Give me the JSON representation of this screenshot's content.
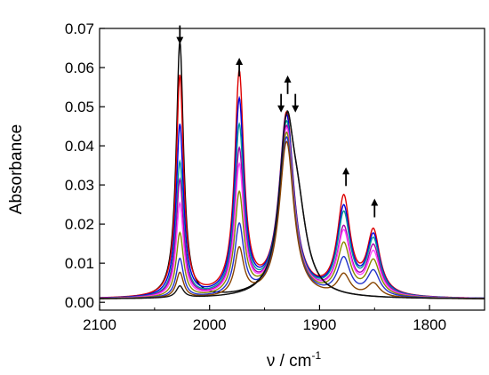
{
  "chart_data": {
    "type": "line",
    "title": "",
    "xlabel": "ν / cm",
    "xlabel_superscript": "-1",
    "ylabel": "Absorbance",
    "xlim": [
      2100,
      1750
    ],
    "ylim": [
      -0.002,
      0.07
    ],
    "x_reversed": true,
    "x_ticks": [
      2100,
      2000,
      1900,
      1800
    ],
    "y_ticks": [
      0.0,
      0.01,
      0.02,
      0.03,
      0.04,
      0.05,
      0.06,
      0.07
    ],
    "y_tick_labels": [
      "0.00",
      "0.01",
      "0.02",
      "0.03",
      "0.04",
      "0.05",
      "0.06",
      "0.07"
    ],
    "grid": false,
    "legend": "none",
    "arrows": [
      {
        "x": 2027,
        "y": 0.0685,
        "direction": "down"
      },
      {
        "x": 1973,
        "y": 0.06,
        "direction": "up"
      },
      {
        "x": 1935,
        "y": 0.051,
        "direction": "down"
      },
      {
        "x": 1929,
        "y": 0.0555,
        "direction": "up"
      },
      {
        "x": 1922,
        "y": 0.051,
        "direction": "down"
      },
      {
        "x": 1876,
        "y": 0.032,
        "direction": "up"
      },
      {
        "x": 1850,
        "y": 0.024,
        "direction": "up"
      }
    ],
    "series": [
      {
        "color": "#000000",
        "peaks": [
          0.0655,
          0.0,
          0.039,
          0.0,
          0.0
        ],
        "shoulder": 0.0385
      },
      {
        "color": "#dd0000",
        "peaks": [
          0.0565,
          0.0565,
          0.0465,
          0.0245,
          0.016
        ],
        "shoulder": 0.0
      },
      {
        "color": "#0000dd",
        "peaks": [
          0.044,
          0.0495,
          0.046,
          0.022,
          0.015
        ],
        "shoulder": 0.0
      },
      {
        "color": "#009999",
        "peaks": [
          0.0345,
          0.043,
          0.0445,
          0.0205,
          0.014
        ],
        "shoulder": 0.0
      },
      {
        "color": "#aa00aa",
        "peaks": [
          0.03,
          0.037,
          0.0435,
          0.017,
          0.0125
        ],
        "shoulder": 0.0
      },
      {
        "color": "#ff44ff",
        "peaks": [
          0.024,
          0.033,
          0.043,
          0.016,
          0.011
        ],
        "shoulder": 0.0
      },
      {
        "color": "#888800",
        "peaks": [
          0.0165,
          0.026,
          0.042,
          0.013,
          0.009
        ],
        "shoulder": 0.0
      },
      {
        "color": "#2233cc",
        "peaks": [
          0.01,
          0.018,
          0.041,
          0.0095,
          0.0065
        ],
        "shoulder": 0.0
      },
      {
        "color": "#884400",
        "peaks": [
          0.0065,
          0.012,
          0.04,
          0.0055,
          0.0035
        ],
        "shoulder": 0.0
      },
      {
        "color": "#111111",
        "peaks": [
          0.003,
          0.0,
          0.039,
          0.0,
          0.0
        ],
        "shoulder": 0.038
      }
    ],
    "peak_positions": [
      2027,
      1973,
      1930,
      1878,
      1851
    ],
    "peak_widths": [
      4,
      5,
      8,
      7,
      7
    ]
  }
}
